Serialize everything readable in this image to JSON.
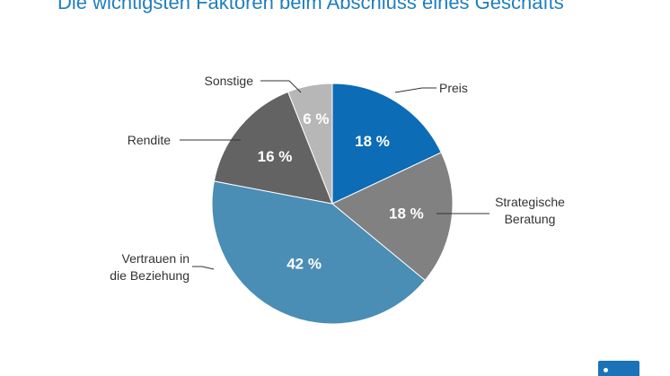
{
  "chart_data": {
    "type": "pie",
    "title": "Die wichtigsten Faktoren beim Abschluss eines Geschäfts",
    "slices": [
      {
        "label": "Preis",
        "label_lines": [
          "Preis"
        ],
        "value": 18,
        "value_label": "18 %",
        "color": "#0c6cb5"
      },
      {
        "label": "Strategische Beratung",
        "label_lines": [
          "Strategische",
          "Beratung"
        ],
        "value": 18,
        "value_label": "18 %",
        "color": "#818181"
      },
      {
        "label": "Vertrauen in die Beziehung",
        "label_lines": [
          "Vertrauen in",
          "die Beziehung"
        ],
        "value": 42,
        "value_label": "42 %",
        "color": "#4a8db5"
      },
      {
        "label": "Rendite",
        "label_lines": [
          "Rendite"
        ],
        "value": 16,
        "value_label": "16 %",
        "color": "#636363"
      },
      {
        "label": "Sonstige",
        "label_lines": [
          "Sonstige"
        ],
        "value": 6,
        "value_label": "6 %",
        "color": "#b7b7b7"
      }
    ],
    "start_angle": "12 o'clock",
    "direction": "clockwise",
    "legend": "none"
  },
  "colors": {
    "title": "#1f7fbf",
    "brand": "#1a73b8"
  },
  "icons": {
    "logo": "brand-logo-icon"
  }
}
